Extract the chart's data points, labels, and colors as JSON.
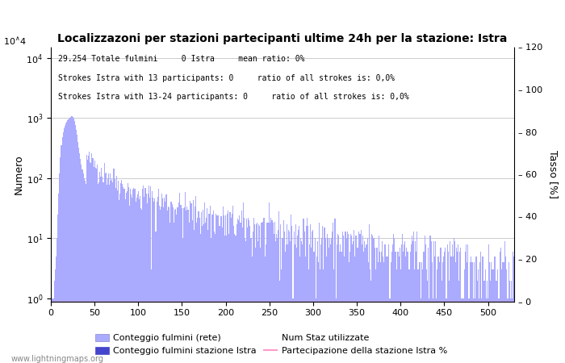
{
  "title": "Localizzazoni per stazioni partecipanti ultime 24h per la stazione: Istra",
  "ylabel_left": "Numero",
  "ylabel_right": "Tasso [%]",
  "annotation_lines": [
    "29.254 Totale fulmini     0 Istra     mean ratio: 0%",
    "Strokes Istra with 13 participants: 0     ratio of all strokes is: 0,0%",
    "Strokes Istra with 13-24 participants: 0     ratio of all strokes is: 0,0%"
  ],
  "watermark": "www.lightningmaps.org",
  "bar_color_light": "#aaaaff",
  "bar_color_dark": "#4444cc",
  "line_color": "#ff99cc",
  "xlim": [
    0,
    530
  ],
  "ylim_right": [
    0,
    120
  ],
  "right_ticks": [
    0,
    20,
    40,
    60,
    80,
    100,
    120
  ],
  "xticks": [
    0,
    50,
    100,
    150,
    200,
    250,
    300,
    350,
    400,
    450,
    500
  ],
  "legend_labels": [
    "Conteggio fulmini (rete)",
    "Conteggio fulmini stazione Istra",
    "Num Staz utilizzate",
    "Partecipazione della stazione Istra %"
  ]
}
